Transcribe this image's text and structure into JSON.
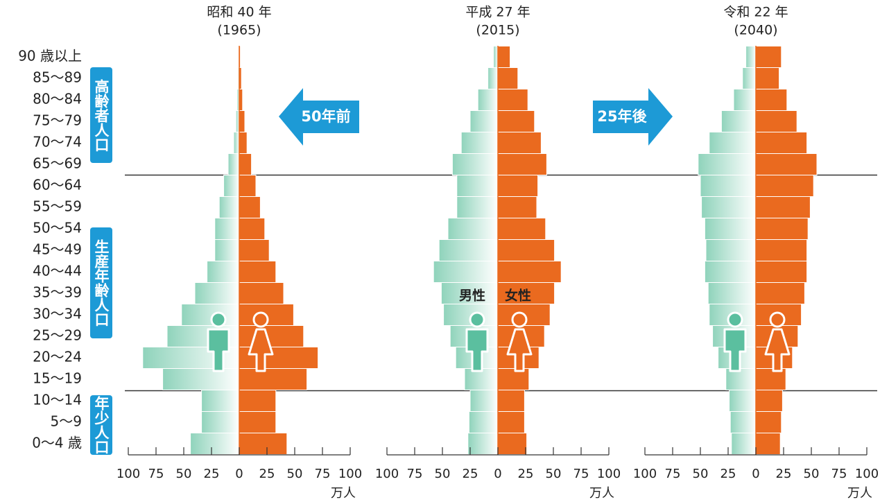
{
  "annotations": [
    "50年前",
    "25年後"
  ],
  "chart_data": [
    {
      "type": "pyramid",
      "title": "昭和 40 年",
      "subtitle": "(1965)",
      "x_label": "万人",
      "categories": [
        "90 歳以上",
        "85〜89",
        "80〜84",
        "75〜79",
        "70〜74",
        "65〜69",
        "60〜64",
        "55〜59",
        "50〜54",
        "45〜49",
        "40〜44",
        "35〜39",
        "30〜34",
        "25〜29",
        "20〜24",
        "15〜19",
        "10〜14",
        "5〜9",
        "0〜4 歳"
      ],
      "age_group_labels": [
        "高齢者人口",
        "生産年齢人口",
        "年少人口"
      ],
      "series": [
        {
          "color": "#8fd3bb",
          "values": [
            0.5,
            1,
            2,
            3,
            5,
            10,
            14,
            18,
            22,
            22,
            29,
            40,
            52,
            65,
            87,
            69,
            34,
            34,
            44
          ]
        },
        {
          "color": "#ea6a1f",
          "values": [
            1,
            2,
            3,
            5,
            7,
            11,
            15,
            19,
            23,
            27,
            33,
            40,
            49,
            58,
            71,
            61,
            33,
            33,
            43
          ]
        }
      ],
      "xlim": [
        -100,
        100
      ],
      "xticks": [
        {
          "value": -100,
          "label": "100"
        },
        {
          "value": -75,
          "label": "75"
        },
        {
          "value": -50,
          "label": "50"
        },
        {
          "value": -25,
          "label": "25"
        },
        0,
        25,
        50,
        75,
        100
      ]
    },
    {
      "type": "pyramid",
      "title": "平成 27 年",
      "subtitle": "(2015)",
      "x_label": "万人",
      "series": [
        {
          "name": "男性",
          "color": "#8fd3bb",
          "values": [
            4,
            9,
            18,
            25,
            33,
            41,
            37,
            37,
            45,
            53,
            58,
            51,
            49,
            43,
            38,
            30,
            25,
            26,
            27
          ]
        },
        {
          "name": "女性",
          "color": "#ea6a1f",
          "values": [
            11,
            18,
            27,
            33,
            39,
            44,
            36,
            35,
            43,
            51,
            57,
            51,
            47,
            42,
            37,
            28,
            24,
            24,
            26
          ]
        }
      ],
      "xlim": [
        -100,
        100
      ],
      "xticks": [
        {
          "value": -100,
          "label": "100"
        },
        {
          "value": -75,
          "label": "75"
        },
        {
          "value": -50,
          "label": "50"
        },
        {
          "value": -25,
          "label": "25"
        },
        0,
        25,
        50,
        75,
        100
      ]
    },
    {
      "type": "pyramid",
      "title": "令和 22 年",
      "subtitle": "(2040)",
      "x_label": "万人",
      "series": [
        {
          "color": "#8fd3bb",
          "values": [
            9,
            12,
            20,
            31,
            42,
            52,
            50,
            49,
            46,
            45,
            46,
            43,
            42,
            39,
            34,
            27,
            24,
            23,
            22
          ]
        },
        {
          "color": "#ea6a1f",
          "values": [
            23,
            21,
            28,
            37,
            46,
            55,
            52,
            49,
            47,
            46,
            46,
            44,
            41,
            38,
            33,
            27,
            24,
            23,
            22
          ]
        }
      ],
      "xlim": [
        -100,
        100
      ],
      "xticks": [
        {
          "value": -100,
          "label": "100"
        },
        {
          "value": -75,
          "label": "75"
        },
        {
          "value": -50,
          "label": "50"
        },
        {
          "value": -25,
          "label": "25"
        },
        0,
        25,
        50,
        75,
        100
      ]
    }
  ]
}
